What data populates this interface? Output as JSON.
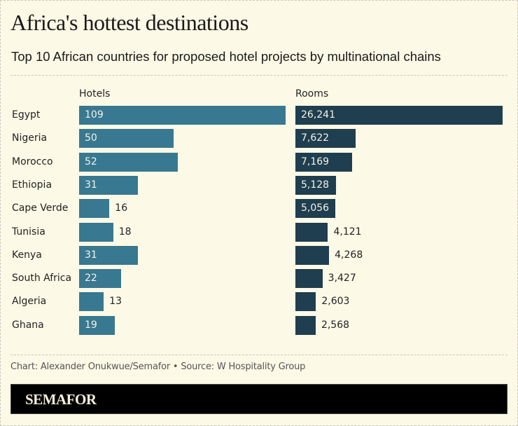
{
  "header": {
    "title": "Africa's hottest destinations",
    "subtitle": "Top 10 African countries for proposed hotel projects by multinational chains"
  },
  "footer": {
    "credit": "Chart: Alexander Onukwue/Semafor • Source: W Hospitality Group",
    "logo": "SEMAFOR"
  },
  "colors": {
    "background": "#fcf9e6",
    "hotels_bar": "#387890",
    "rooms_bar": "#1f3e4f",
    "logo_bar": "#000000"
  },
  "chart_data": {
    "type": "bar",
    "orientation": "horizontal",
    "title": "Africa's hottest destinations",
    "subtitle": "Top 10 African countries for proposed hotel projects by multinational chains",
    "categories": [
      "Egypt",
      "Nigeria",
      "Morocco",
      "Ethiopia",
      "Cape Verde",
      "Tunisia",
      "Kenya",
      "South Africa",
      "Algeria",
      "Ghana"
    ],
    "series": [
      {
        "name": "Hotels",
        "values": [
          109,
          50,
          52,
          31,
          16,
          18,
          31,
          22,
          13,
          19
        ],
        "labels": [
          "109",
          "50",
          "52",
          "31",
          "16",
          "18",
          "31",
          "22",
          "13",
          "19"
        ]
      },
      {
        "name": "Rooms",
        "values": [
          26241,
          7622,
          7169,
          5128,
          5056,
          4121,
          4268,
          3427,
          2603,
          2568
        ],
        "labels": [
          "26,241",
          "7,622",
          "7,169",
          "5,128",
          "5,056",
          "4,121",
          "4,268",
          "3,427",
          "2,603",
          "2,568"
        ]
      }
    ],
    "xlabel": "",
    "ylabel": "",
    "grid": false,
    "legend": "none"
  }
}
